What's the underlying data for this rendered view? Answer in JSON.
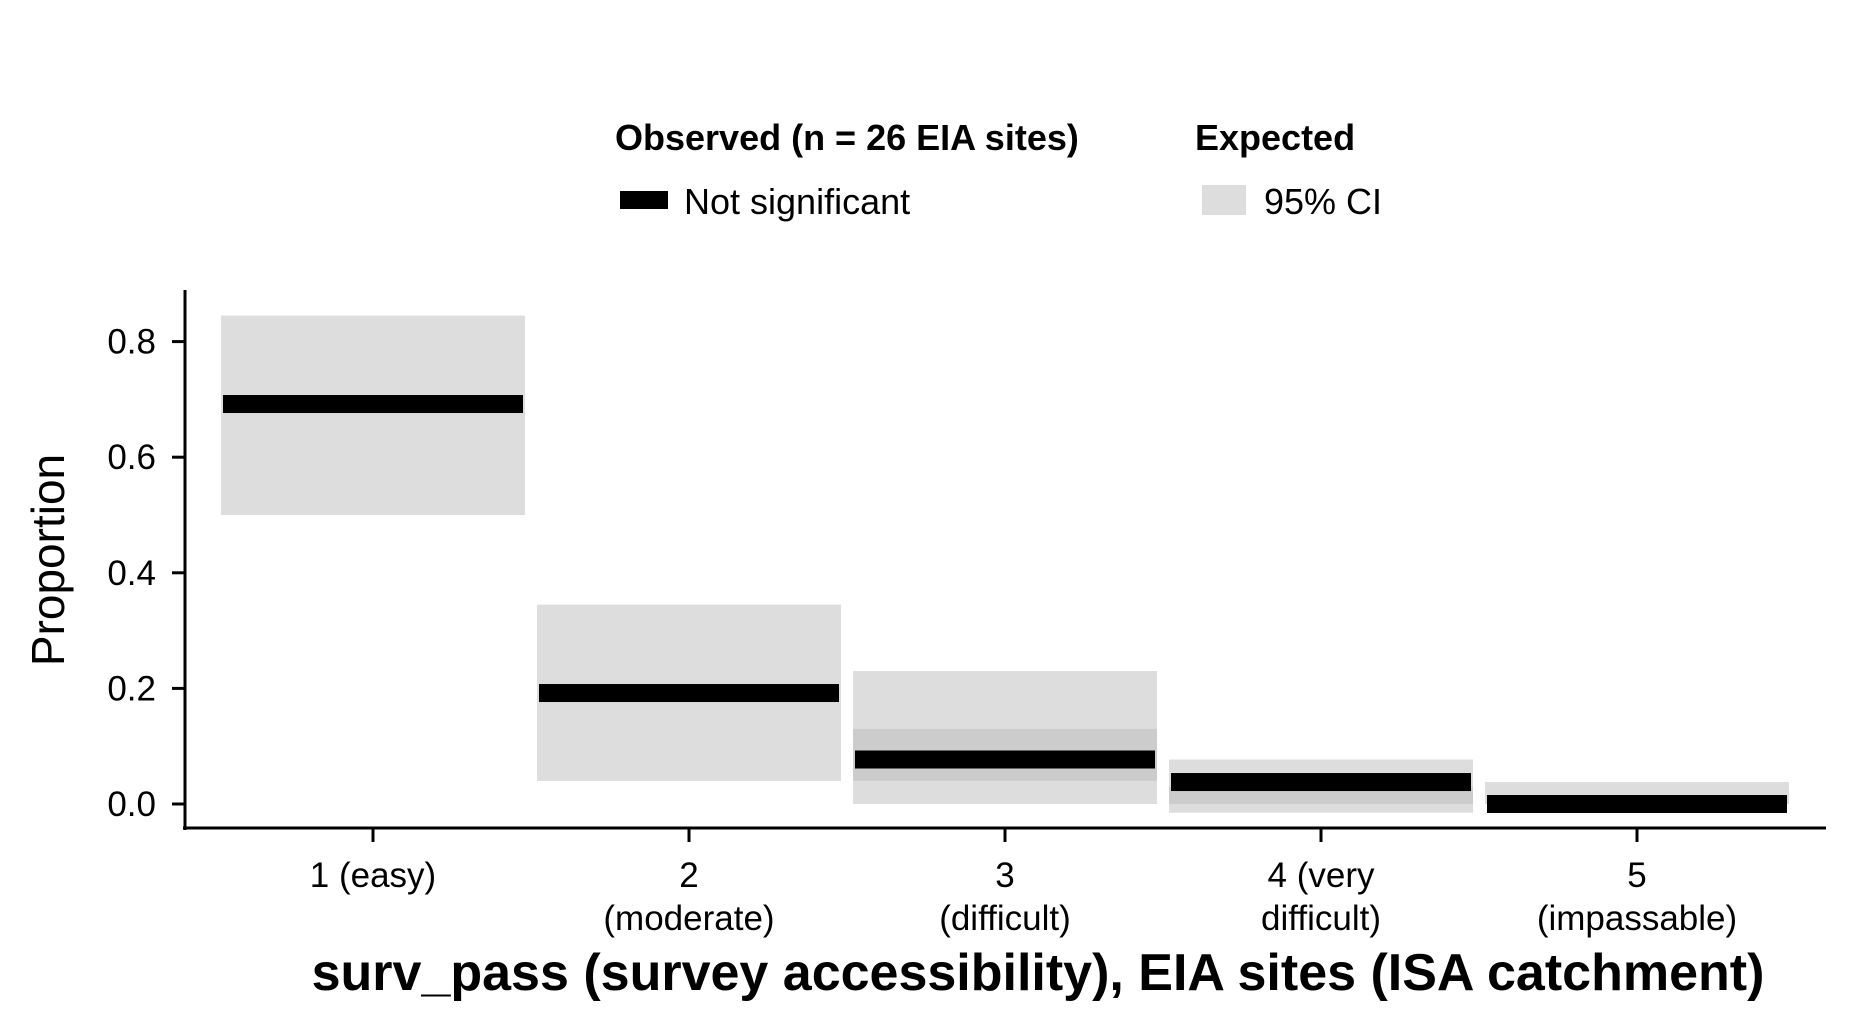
{
  "chart_data": {
    "type": "bar",
    "title": "",
    "xlabel": "surv_pass (survey accessibility), EIA sites (ISA catchment)",
    "ylabel": "Proportion",
    "ylim": [
      -0.04,
      0.88
    ],
    "y_ticks": [
      "0.0",
      "0.2",
      "0.4",
      "0.6",
      "0.8"
    ],
    "categories": [
      [
        "1 (easy)"
      ],
      [
        "2",
        "(moderate)"
      ],
      [
        "3",
        "(difficult)"
      ],
      [
        "4 (very",
        "difficult)"
      ],
      [
        "5",
        "(impassable)"
      ]
    ],
    "series": [
      {
        "name": "Not significant",
        "role": "observed",
        "values": [
          0.692,
          0.192,
          0.077,
          0.038,
          0.0
        ],
        "color": "#000000"
      },
      {
        "name": "95% CI",
        "role": "expected",
        "lower": [
          0.5,
          0.04,
          0.0,
          -0.015,
          0.0
        ],
        "upper": [
          0.845,
          0.345,
          0.23,
          0.077,
          0.038
        ],
        "color": "#dddddd"
      }
    ],
    "expected_inner": {
      "lower": [
        null,
        null,
        0.04,
        0.0,
        null
      ],
      "upper": [
        null,
        null,
        0.13,
        0.03,
        null
      ],
      "color": "#cccccc"
    },
    "legend": {
      "placement": "top",
      "observed_title": "Observed (n = 26 EIA sites)",
      "expected_title": "Expected",
      "observed_label": "Not significant",
      "expected_label": "95% CI"
    },
    "grid": false
  }
}
